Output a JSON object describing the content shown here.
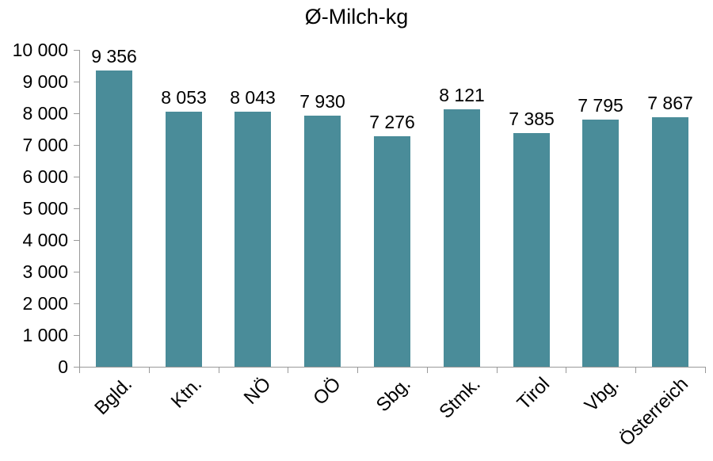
{
  "chart_data": {
    "type": "bar",
    "title": "Ø-Milch-kg",
    "categories": [
      "Bgld.",
      "Ktn.",
      "NÖ",
      "OÖ",
      "Sbg.",
      "Stmk.",
      "Tirol",
      "Vbg.",
      "Österreich"
    ],
    "values": [
      9356,
      8053,
      8043,
      7930,
      7276,
      8121,
      7385,
      7795,
      7867
    ],
    "value_labels": [
      "9 356",
      "8 053",
      "8 043",
      "7 930",
      "7 276",
      "8 121",
      "7 385",
      "7 795",
      "7 867"
    ],
    "xlabel": "",
    "ylabel": "",
    "ylim": [
      0,
      10000
    ],
    "ytick_interval": 1000,
    "ytick_labels": [
      "0",
      "1 000",
      "2 000",
      "3 000",
      "4 000",
      "5 000",
      "6 000",
      "7 000",
      "8 000",
      "9 000",
      "10 000"
    ],
    "grid": false,
    "legend": "none",
    "bar_color": "#4A8C99",
    "axis_color": "#999999",
    "text_color": "#000000",
    "background": "#FFFFFF"
  }
}
